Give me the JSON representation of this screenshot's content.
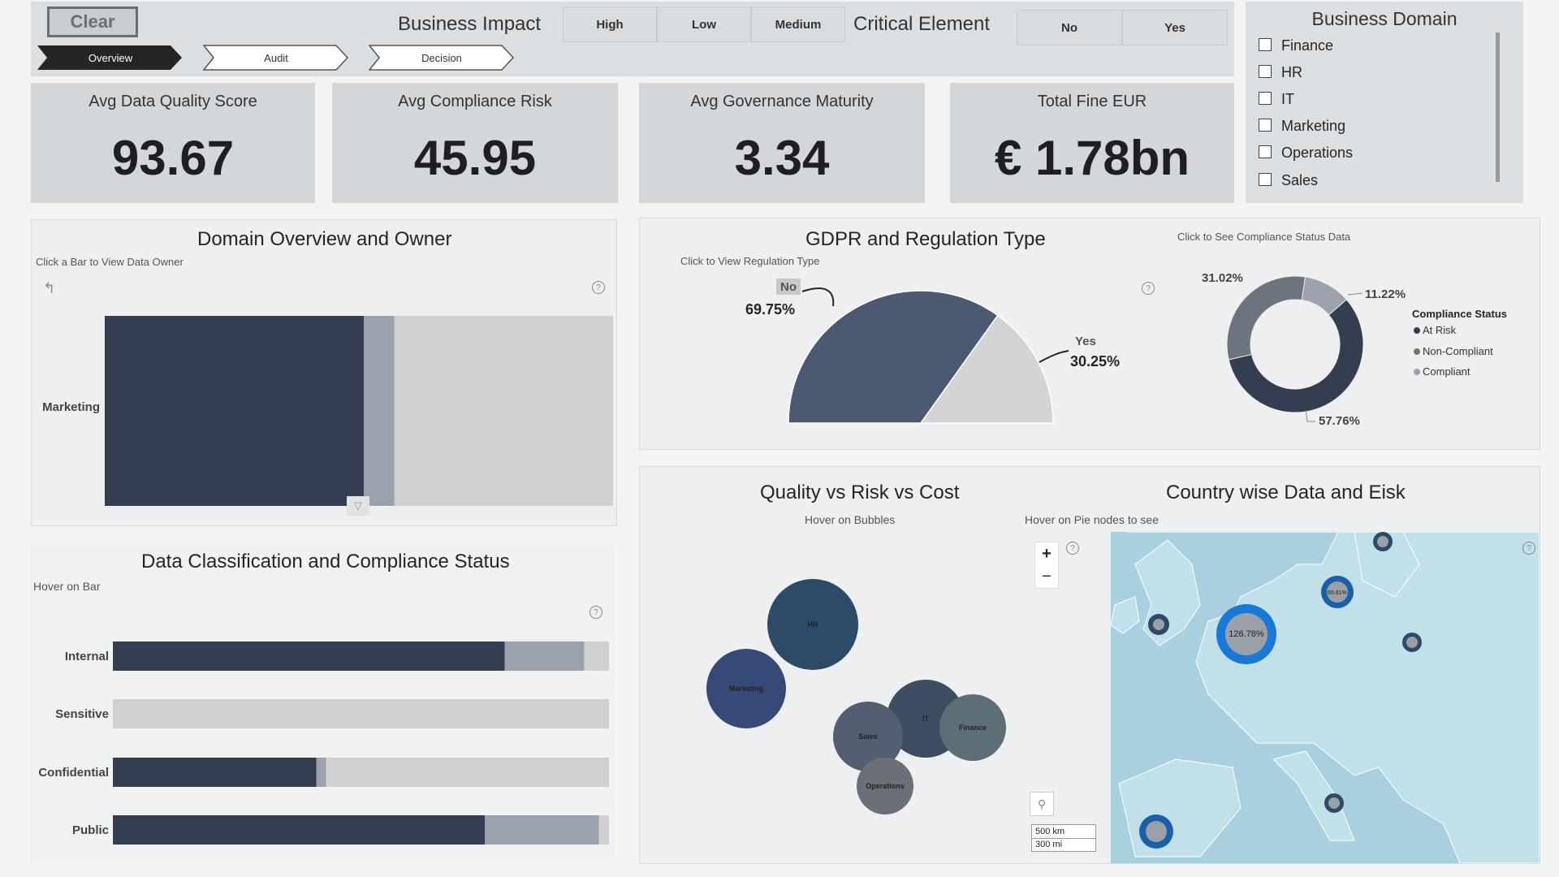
{
  "topbar": {
    "clear_label": "Clear",
    "nav": [
      "Overview",
      "Audit",
      "Decision"
    ],
    "business_impact_label": "Business Impact",
    "impact_options": [
      "High",
      "Low",
      "Medium"
    ],
    "critical_element_label": "Critical Element",
    "critical_options": [
      "No",
      "Yes"
    ]
  },
  "kpis": [
    {
      "title": "Avg Data Quality Score",
      "value": "93.67"
    },
    {
      "title": "Avg Compliance Risk",
      "value": "45.95"
    },
    {
      "title": "Avg Governance Maturity",
      "value": "3.34"
    },
    {
      "title": "Total Fine EUR",
      "value": "€ 1.78bn"
    }
  ],
  "business_domain": {
    "title": "Business Domain",
    "items": [
      "Finance",
      "HR",
      "IT",
      "Marketing",
      "Operations",
      "Sales"
    ]
  },
  "colors": {
    "dark": "#343e50",
    "mid": "#9ba2ad",
    "light": "#cfd0d2",
    "accent": "#1a78d6"
  },
  "domain_panel": {
    "title": "Domain Overview and Owner",
    "subtitle": "Click a Bar to View Data Owner",
    "bar_label": "Marketing"
  },
  "classification_panel": {
    "title": "Data Classification and Compliance Status",
    "subtitle": "Hover on Bar",
    "rows": [
      "Internal",
      "Sensitive",
      "Confidential",
      "Public"
    ]
  },
  "gdpr_panel": {
    "title": "GDPR and Regulation Type",
    "subtitle": "Click to View Regulation Type",
    "no_label": "No",
    "no_value": "69.75%",
    "yes_label": "Yes",
    "yes_value": "30.25%",
    "donut_subtitle": "Click to See Compliance Status Data",
    "donut_labels": [
      "31.02%",
      "11.22%",
      "57.76%"
    ],
    "legend_title": "Compliance Status",
    "legend_items": [
      "At Risk",
      "Non-Compliant",
      "Compliant"
    ]
  },
  "bubble_panel": {
    "title": "Quality vs Risk vs Cost",
    "subtitle": "Hover on Bubbles",
    "bubbles": [
      "HR",
      "Marketing",
      "IT",
      "Finance",
      "Sales",
      "Operations"
    ]
  },
  "map_panel": {
    "title": "Country wise Data and Eisk",
    "subtitle": "Hover on Pie nodes to see",
    "zoom_in": "+",
    "zoom_out": "−",
    "scale_km": "500 km",
    "scale_mi": "300 mi",
    "big_node_label": "126.78%",
    "node_labels": [
      "65.81%"
    ]
  },
  "chart_data": [
    {
      "type": "bar",
      "title": "Domain Overview and Owner",
      "categories": [
        "Marketing"
      ],
      "series": [
        {
          "values": [
            0.51
          ]
        },
        {
          "values": [
            0.06
          ]
        },
        {
          "values": [
            0.43
          ]
        }
      ]
    },
    {
      "type": "bar",
      "title": "Data Classification and Compliance Status",
      "categories": [
        "Internal",
        "Sensitive",
        "Confidential",
        "Public"
      ],
      "series": [
        {
          "name": "At Risk",
          "values": [
            0.79,
            0.0,
            0.41,
            0.75
          ]
        },
        {
          "name": "Non-Compliant",
          "values": [
            0.16,
            0.0,
            0.02,
            0.23
          ]
        },
        {
          "name": "Compliant",
          "values": [
            0.05,
            1.0,
            0.57,
            0.02
          ]
        }
      ]
    },
    {
      "type": "pie",
      "title": "GDPR and Regulation Type",
      "categories": [
        "No",
        "Yes"
      ],
      "values": [
        69.75,
        30.25
      ]
    },
    {
      "type": "pie",
      "title": "Compliance Status",
      "categories": [
        "At Risk",
        "Non-Compliant",
        "Compliant"
      ],
      "values": [
        57.76,
        11.22,
        31.02
      ]
    }
  ]
}
